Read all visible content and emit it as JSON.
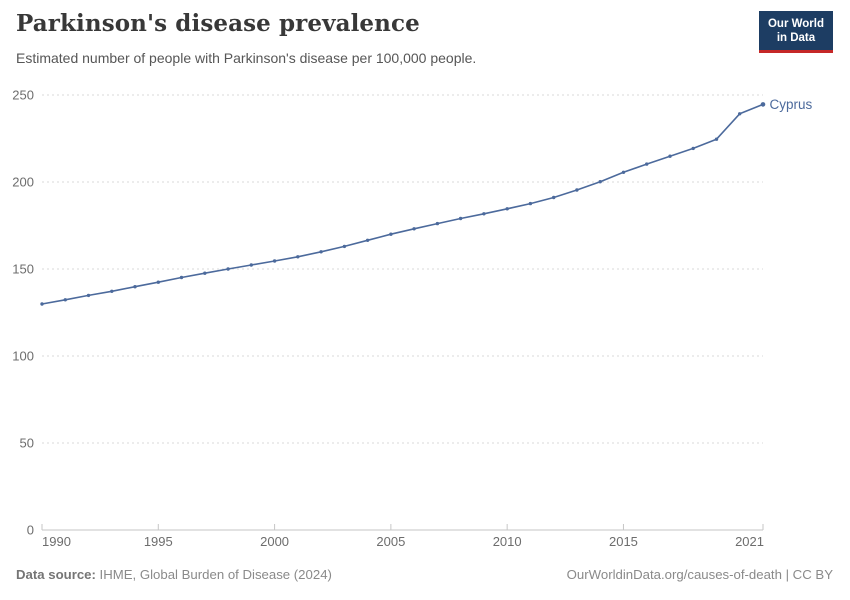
{
  "header": {
    "title": "Parkinson's disease prevalence",
    "subtitle": "Estimated number of people with Parkinson's disease per 100,000 people.",
    "logo_line1": "Our World",
    "logo_line2": "in Data"
  },
  "chart_data": {
    "type": "line",
    "title": "Parkinson's disease prevalence",
    "xlabel": "",
    "ylabel": "",
    "xlim": [
      1990,
      2021
    ],
    "ylim": [
      0,
      250
    ],
    "xticks": [
      1990,
      1995,
      2000,
      2005,
      2010,
      2015,
      2021
    ],
    "yticks": [
      0,
      50,
      100,
      150,
      200,
      250
    ],
    "grid": "horizontal-dashed",
    "legend_position": "end-of-line-label",
    "series": [
      {
        "name": "Cyprus",
        "color": "#4C6A9C",
        "x": [
          1990,
          1991,
          1992,
          1993,
          1994,
          1995,
          1996,
          1997,
          1998,
          1999,
          2000,
          2001,
          2002,
          2003,
          2004,
          2005,
          2006,
          2007,
          2008,
          2009,
          2010,
          2011,
          2012,
          2013,
          2014,
          2015,
          2016,
          2017,
          2018,
          2019,
          2020,
          2021
        ],
        "values": [
          129.9,
          132.3,
          134.8,
          137.2,
          139.8,
          142.4,
          145.1,
          147.6,
          150.0,
          152.3,
          154.6,
          157.0,
          159.9,
          163.0,
          166.5,
          170.0,
          173.1,
          176.1,
          179.0,
          181.7,
          184.6,
          187.6,
          191.1,
          195.4,
          200.2,
          205.6,
          210.3,
          214.8,
          219.3,
          224.6,
          239.2,
          244.6
        ]
      }
    ]
  },
  "footer": {
    "source_label": "Data source:",
    "source_text": " IHME, Global Burden of Disease (2024)",
    "credit": "OurWorldinData.org/causes-of-death | CC BY"
  },
  "colors": {
    "line": "#4C6A9C",
    "grid": "#dadada",
    "axis": "#c6c6c6",
    "tick_label": "#6d6d6d",
    "logo_bg": "#1d3d63",
    "logo_red": "#c52828"
  }
}
